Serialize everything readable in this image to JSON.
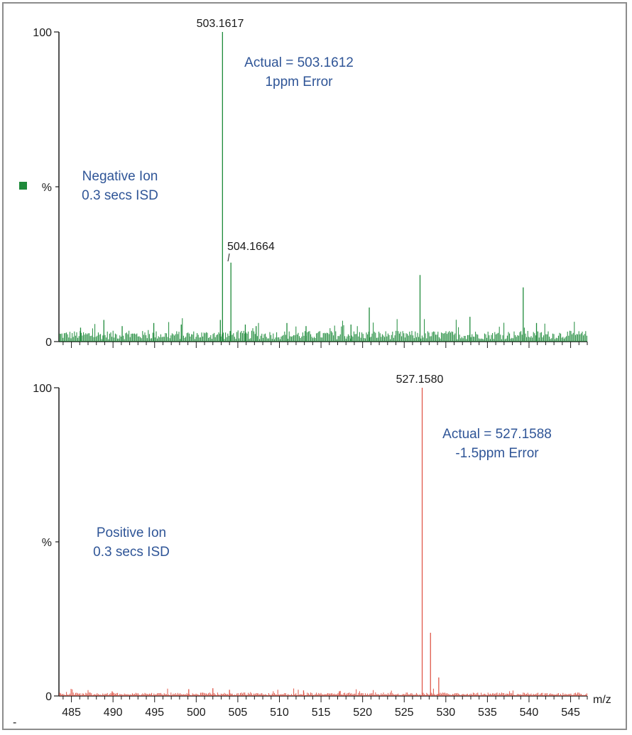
{
  "chart_data": [
    {
      "type": "line",
      "mode": "stick-spectrum",
      "color": "#1e8a3a",
      "ylim": [
        0,
        100
      ],
      "xlim": [
        483.5,
        547
      ],
      "yticks": [
        "100",
        "%",
        "0"
      ],
      "legend_marker_color": "#1e8a3a",
      "annotations": [
        {
          "text": "Actual = 503.1612"
        },
        {
          "text": "1ppm Error"
        },
        {
          "text": "Negative Ion"
        },
        {
          "text": "0.3 secs ISD"
        }
      ],
      "peak_labels": [
        {
          "text": "503.1617",
          "x": 503.16
        },
        {
          "text": "504.1664",
          "x": 504.17
        }
      ],
      "peaks": [
        {
          "x": 503.16,
          "y": 100
        },
        {
          "x": 504.17,
          "y": 25.5
        },
        {
          "x": 526.9,
          "y": 21.5
        },
        {
          "x": 539.3,
          "y": 17.5
        },
        {
          "x": 520.8,
          "y": 11
        },
        {
          "x": 532.9,
          "y": 8
        },
        {
          "x": 540.9,
          "y": 6
        },
        {
          "x": 502.9,
          "y": 7
        },
        {
          "x": 498.2,
          "y": 5.5
        },
        {
          "x": 510.9,
          "y": 6
        },
        {
          "x": 488.9,
          "y": 7
        },
        {
          "x": 494.9,
          "y": 6
        },
        {
          "x": 507.2,
          "y": 5
        },
        {
          "x": 513.2,
          "y": 5
        },
        {
          "x": 518.6,
          "y": 5.5
        },
        {
          "x": 491.1,
          "y": 5
        },
        {
          "x": 486.1,
          "y": 4.5
        },
        {
          "x": 505.9,
          "y": 5.5
        }
      ],
      "noise_level": 2.5
    },
    {
      "type": "line",
      "mode": "stick-spectrum",
      "color": "#e0584a",
      "ylim": [
        0,
        100
      ],
      "xlim": [
        483.5,
        547
      ],
      "xlabel": "m/z",
      "yticks": [
        "100",
        "%",
        "0"
      ],
      "xticks": [
        485,
        490,
        495,
        500,
        505,
        510,
        515,
        520,
        525,
        530,
        535,
        540,
        545
      ],
      "annotations": [
        {
          "text": "Actual = 527.1588"
        },
        {
          "text": "-1.5ppm Error"
        },
        {
          "text": "Positive Ion"
        },
        {
          "text": "0.3 secs ISD"
        }
      ],
      "peak_labels": [
        {
          "text": "527.1580",
          "x": 527.16
        }
      ],
      "peaks": [
        {
          "x": 527.16,
          "y": 100
        },
        {
          "x": 528.16,
          "y": 20.5
        },
        {
          "x": 529.15,
          "y": 6
        },
        {
          "x": 502.0,
          "y": 2.5
        },
        {
          "x": 499.1,
          "y": 2.2
        },
        {
          "x": 504.0,
          "y": 2
        },
        {
          "x": 512.9,
          "y": 1.8
        },
        {
          "x": 489.9,
          "y": 1.5
        },
        {
          "x": 517.2,
          "y": 1.5
        }
      ],
      "noise_level": 0.8
    }
  ],
  "corner_mark": "-"
}
